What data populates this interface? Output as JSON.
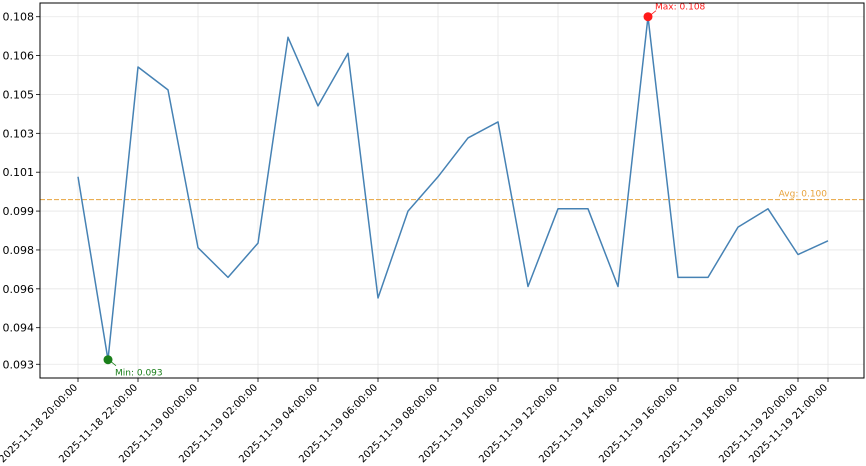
{
  "chart_data": {
    "type": "line",
    "title": "",
    "xlabel": "",
    "ylabel": "",
    "x": [
      "2025-11-18 20:00:00",
      "2025-11-18 21:00:00",
      "2025-11-18 22:00:00",
      "2025-11-18 23:00:00",
      "2025-11-19 00:00:00",
      "2025-11-19 01:00:00",
      "2025-11-19 02:00:00",
      "2025-11-19 03:00:00",
      "2025-11-19 04:00:00",
      "2025-11-19 05:00:00",
      "2025-11-19 06:00:00",
      "2025-11-19 07:00:00",
      "2025-11-19 08:00:00",
      "2025-11-19 09:00:00",
      "2025-11-19 10:00:00",
      "2025-11-19 11:00:00",
      "2025-11-19 12:00:00",
      "2025-11-19 13:00:00",
      "2025-11-19 14:00:00",
      "2025-11-19 15:00:00",
      "2025-11-19 16:00:00",
      "2025-11-19 17:00:00",
      "2025-11-19 18:00:00",
      "2025-11-19 19:00:00",
      "2025-11-19 20:00:00",
      "2025-11-19 21:00:00"
    ],
    "series": [
      {
        "color": "#4682b4",
        "values": [
          0.101,
          0.093,
          0.1058,
          0.1048,
          0.0979,
          0.0966,
          0.0981,
          0.1071,
          0.1041,
          0.1064,
          0.0957,
          0.0995,
          0.101,
          0.1027,
          0.1034,
          0.0962,
          0.0996,
          0.0996,
          0.0962,
          0.108,
          0.0966,
          0.0966,
          0.0988,
          0.0996,
          0.0976,
          0.0982
        ]
      }
    ],
    "ylim": [
      0.0922,
      0.1086
    ],
    "yticks": [
      "0.108",
      "0.106",
      "0.105",
      "0.103",
      "0.101",
      "0.099",
      "0.098",
      "0.096",
      "0.094",
      "0.093"
    ],
    "ytick_values": [
      0.108,
      0.1063,
      0.1046,
      0.1029,
      0.1012,
      0.0995,
      0.0978,
      0.0961,
      0.0944,
      0.0928
    ],
    "xticks": [
      "2025-11-18 20:00:00",
      "2025-11-18 22:00:00",
      "2025-11-19 00:00:00",
      "2025-11-19 02:00:00",
      "2025-11-19 04:00:00",
      "2025-11-19 06:00:00",
      "2025-11-19 08:00:00",
      "2025-11-19 10:00:00",
      "2025-11-19 12:00:00",
      "2025-11-19 14:00:00",
      "2025-11-19 16:00:00",
      "2025-11-19 18:00:00",
      "2025-11-19 20:00:00",
      "2025-11-19 21:00:00"
    ],
    "xtick_indices": [
      0,
      2,
      4,
      6,
      8,
      10,
      12,
      14,
      16,
      18,
      20,
      22,
      24,
      25
    ],
    "average": {
      "value": 0.1,
      "label": "Avg: 0.100",
      "color": "#e8a33c"
    },
    "max_marker": {
      "index": 19,
      "label": "Max: 0.108",
      "color": "#ff1a1a"
    },
    "min_marker": {
      "index": 1,
      "label": "Min: 0.093",
      "color": "#1a7f1a"
    },
    "grid": true
  }
}
